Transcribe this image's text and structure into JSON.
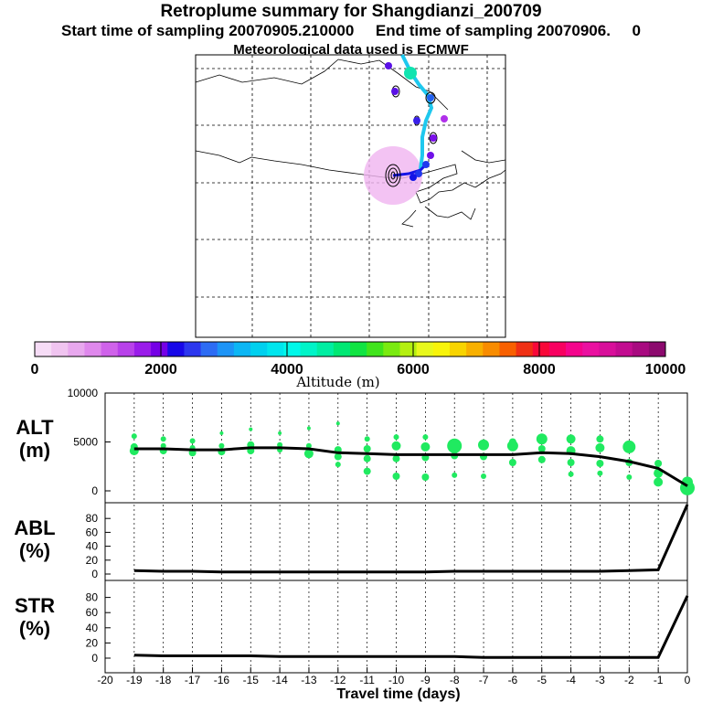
{
  "header": {
    "title": "Retroplume summary for Shangdianzi_200709",
    "sampling": "Start time of sampling 20070905.210000     End time of sampling 20070906.     0",
    "met": "Meteorological data used is ECMWF"
  },
  "colorbar": {
    "colors": [
      "#f6dcf6",
      "#f0c4f0",
      "#e8a8ee",
      "#df88ec",
      "#cf62ea",
      "#b841ea",
      "#9a1cea",
      "#7500e6",
      "#1808e8",
      "#2c37ee",
      "#2d6cf4",
      "#1d94f6",
      "#0cb6f4",
      "#00d0ef",
      "#00e6ee",
      "#00f8ea",
      "#00f4c8",
      "#00eea2",
      "#00e874",
      "#10e442",
      "#40e41c",
      "#7aea10",
      "#b4f010",
      "#e8f81c",
      "#f8f40a",
      "#f8d400",
      "#f8b000",
      "#f88c00",
      "#f86000",
      "#f03014",
      "#f80838",
      "#f80060",
      "#f4048c",
      "#ea10a0",
      "#d80f9a",
      "#c20c90",
      "#a80a80",
      "#8c0a6e"
    ],
    "ticks": [
      "0",
      "2000",
      "4000",
      "6000",
      "8000",
      "10000"
    ],
    "label": "Altitude (m)"
  },
  "map": {
    "trajectory_color": "#1ec8ee",
    "plume_color": "#f0b4f0",
    "receptor_color": "#1414e6"
  },
  "panels": {
    "alt": {
      "label": "ALT",
      "unit": "(m)"
    },
    "abl": {
      "label": "ABL",
      "unit": "(%)"
    },
    "str": {
      "label": "STR",
      "unit": "(%)"
    }
  },
  "chart_data": [
    {
      "type": "line",
      "name": "ALT",
      "ylabel": "ALT (m)",
      "ylim": [
        0,
        10000
      ],
      "yticks": [
        "10000",
        "5000",
        "0"
      ],
      "x": [
        -19,
        -18,
        -17,
        -16,
        -15,
        -14,
        -13,
        -12,
        -11,
        -10,
        -9,
        -8,
        -7,
        -6,
        -5,
        -4,
        -3,
        -2,
        -1,
        0
      ],
      "values": [
        4300,
        4300,
        4200,
        4200,
        4400,
        4400,
        4300,
        3900,
        3800,
        3700,
        3700,
        3700,
        3700,
        3700,
        3900,
        3800,
        3500,
        3000,
        2300,
        500
      ],
      "scatter_points": [
        [
          -19,
          4100,
          5
        ],
        [
          -19,
          4500,
          4
        ],
        [
          -19,
          5600,
          3
        ],
        [
          -18,
          4100,
          4
        ],
        [
          -18,
          4600,
          3
        ],
        [
          -18,
          5300,
          3
        ],
        [
          -17,
          3900,
          4
        ],
        [
          -17,
          4400,
          3
        ],
        [
          -17,
          5100,
          3
        ],
        [
          -16,
          4000,
          4
        ],
        [
          -16,
          4600,
          3
        ],
        [
          -16,
          5900,
          2
        ],
        [
          -15,
          4100,
          4
        ],
        [
          -15,
          4700,
          4
        ],
        [
          -15,
          6300,
          2
        ],
        [
          -14,
          4200,
          3
        ],
        [
          -14,
          4700,
          3
        ],
        [
          -14,
          5900,
          2
        ],
        [
          -13,
          3800,
          5
        ],
        [
          -13,
          4600,
          3
        ],
        [
          -13,
          6400,
          2
        ],
        [
          -12,
          2700,
          3
        ],
        [
          -12,
          3500,
          4
        ],
        [
          -12,
          4200,
          4
        ],
        [
          -12,
          6900,
          2
        ],
        [
          -11,
          2000,
          4
        ],
        [
          -11,
          3300,
          4
        ],
        [
          -11,
          4300,
          4
        ],
        [
          -11,
          5300,
          3
        ],
        [
          -10,
          1500,
          4
        ],
        [
          -10,
          3300,
          4
        ],
        [
          -10,
          4600,
          5
        ],
        [
          -10,
          5500,
          3
        ],
        [
          -9,
          1400,
          4
        ],
        [
          -9,
          3400,
          4
        ],
        [
          -9,
          4500,
          5
        ],
        [
          -9,
          5500,
          3
        ],
        [
          -8,
          1600,
          3
        ],
        [
          -8,
          3600,
          4
        ],
        [
          -8,
          4600,
          8
        ],
        [
          -7,
          1500,
          3
        ],
        [
          -7,
          3500,
          4
        ],
        [
          -7,
          4700,
          6
        ],
        [
          -6,
          2900,
          4
        ],
        [
          -6,
          4600,
          6
        ],
        [
          -6,
          5000,
          4
        ],
        [
          -5,
          3200,
          4
        ],
        [
          -5,
          4300,
          4
        ],
        [
          -5,
          5300,
          6
        ],
        [
          -4,
          1700,
          3
        ],
        [
          -4,
          2900,
          4
        ],
        [
          -4,
          4100,
          5
        ],
        [
          -4,
          5300,
          5
        ],
        [
          -3,
          1800,
          3
        ],
        [
          -3,
          2800,
          4
        ],
        [
          -3,
          4400,
          5
        ],
        [
          -3,
          5300,
          4
        ],
        [
          -2,
          1400,
          3
        ],
        [
          -2,
          2900,
          4
        ],
        [
          -2,
          4500,
          7
        ],
        [
          -1,
          900,
          5
        ],
        [
          -1,
          1800,
          5
        ],
        [
          -1,
          2800,
          4
        ],
        [
          0,
          300,
          8
        ],
        [
          0,
          900,
          6
        ]
      ]
    },
    {
      "type": "line",
      "name": "ABL",
      "ylabel": "ABL (%)",
      "ylim": [
        0,
        100
      ],
      "yticks": [
        "80",
        "60",
        "40",
        "20",
        "0"
      ],
      "x": [
        -19,
        -18,
        -17,
        -16,
        -15,
        -14,
        -13,
        -12,
        -11,
        -10,
        -9,
        -8,
        -7,
        -6,
        -5,
        -4,
        -3,
        -2,
        -1,
        0
      ],
      "values": [
        5,
        4,
        4,
        3,
        3,
        3,
        3,
        3,
        3,
        3,
        3,
        4,
        4,
        4,
        4,
        4,
        4,
        5,
        6,
        100
      ]
    },
    {
      "type": "line",
      "name": "STR",
      "ylabel": "STR (%)",
      "ylim": [
        0,
        100
      ],
      "yticks": [
        "80",
        "60",
        "40",
        "20",
        "0"
      ],
      "x": [
        -19,
        -18,
        -17,
        -16,
        -15,
        -14,
        -13,
        -12,
        -11,
        -10,
        -9,
        -8,
        -7,
        -6,
        -5,
        -4,
        -3,
        -2,
        -1,
        0
      ],
      "values": [
        4,
        3,
        3,
        3,
        3,
        2,
        2,
        2,
        2,
        2,
        2,
        2,
        1,
        1,
        1,
        1,
        1,
        1,
        1,
        82
      ]
    }
  ],
  "xaxis": {
    "ticks": [
      "-20",
      "-19",
      "-18",
      "-17",
      "-16",
      "-15",
      "-14",
      "-13",
      "-12",
      "-11",
      "-10",
      "-9",
      "-8",
      "-7",
      "-6",
      "-5",
      "-4",
      "-3",
      "-2",
      "-1",
      "0"
    ],
    "label": "Travel time (days)"
  }
}
